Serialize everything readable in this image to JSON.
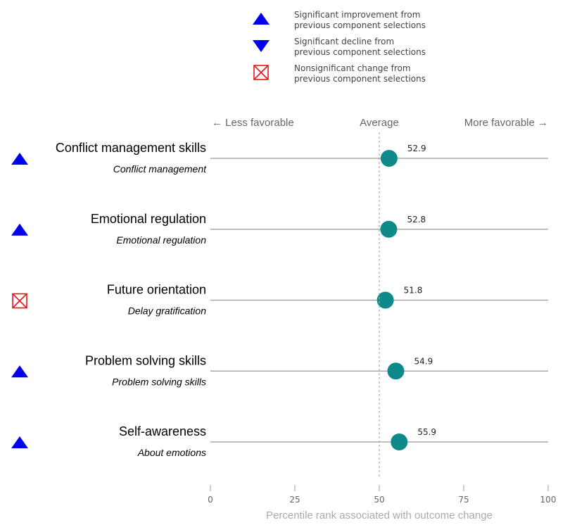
{
  "legend": [
    {
      "kind": "up",
      "line1": "Significant improvement from",
      "line2": "previous component selections"
    },
    {
      "kind": "down",
      "line1": "Significant decline from",
      "line2": "previous component selections"
    },
    {
      "kind": "ns",
      "line1": "Nonsignificant change from",
      "line2": "previous component selections"
    }
  ],
  "colors": {
    "up": "#0000ee",
    "down": "#0000ee",
    "ns": "#e8141c",
    "dot": "#0e8a8a",
    "line": "#999999"
  },
  "chart_data": {
    "type": "scatter",
    "xlim": [
      0,
      100
    ],
    "xticks": [
      0,
      25,
      50,
      75,
      100
    ],
    "xlabel": "Percentile rank associated with outcome change",
    "header": {
      "left": "← Less favorable",
      "center": "Average",
      "right": "More favorable →"
    },
    "reference_value": 50,
    "rows": [
      {
        "title": "Conflict management skills",
        "subtitle": "Conflict management",
        "value": 52.9,
        "label": "52.9",
        "status": "up"
      },
      {
        "title": "Emotional regulation",
        "subtitle": "Emotional regulation",
        "value": 52.8,
        "label": "52.8",
        "status": "up"
      },
      {
        "title": "Future orientation",
        "subtitle": "Delay gratification",
        "value": 51.8,
        "label": "51.8",
        "status": "ns"
      },
      {
        "title": "Problem solving skills",
        "subtitle": "Problem solving skills",
        "value": 54.9,
        "label": "54.9",
        "status": "up"
      },
      {
        "title": "Self-awareness",
        "subtitle": "About emotions",
        "value": 55.9,
        "label": "55.9",
        "status": "up"
      }
    ]
  }
}
